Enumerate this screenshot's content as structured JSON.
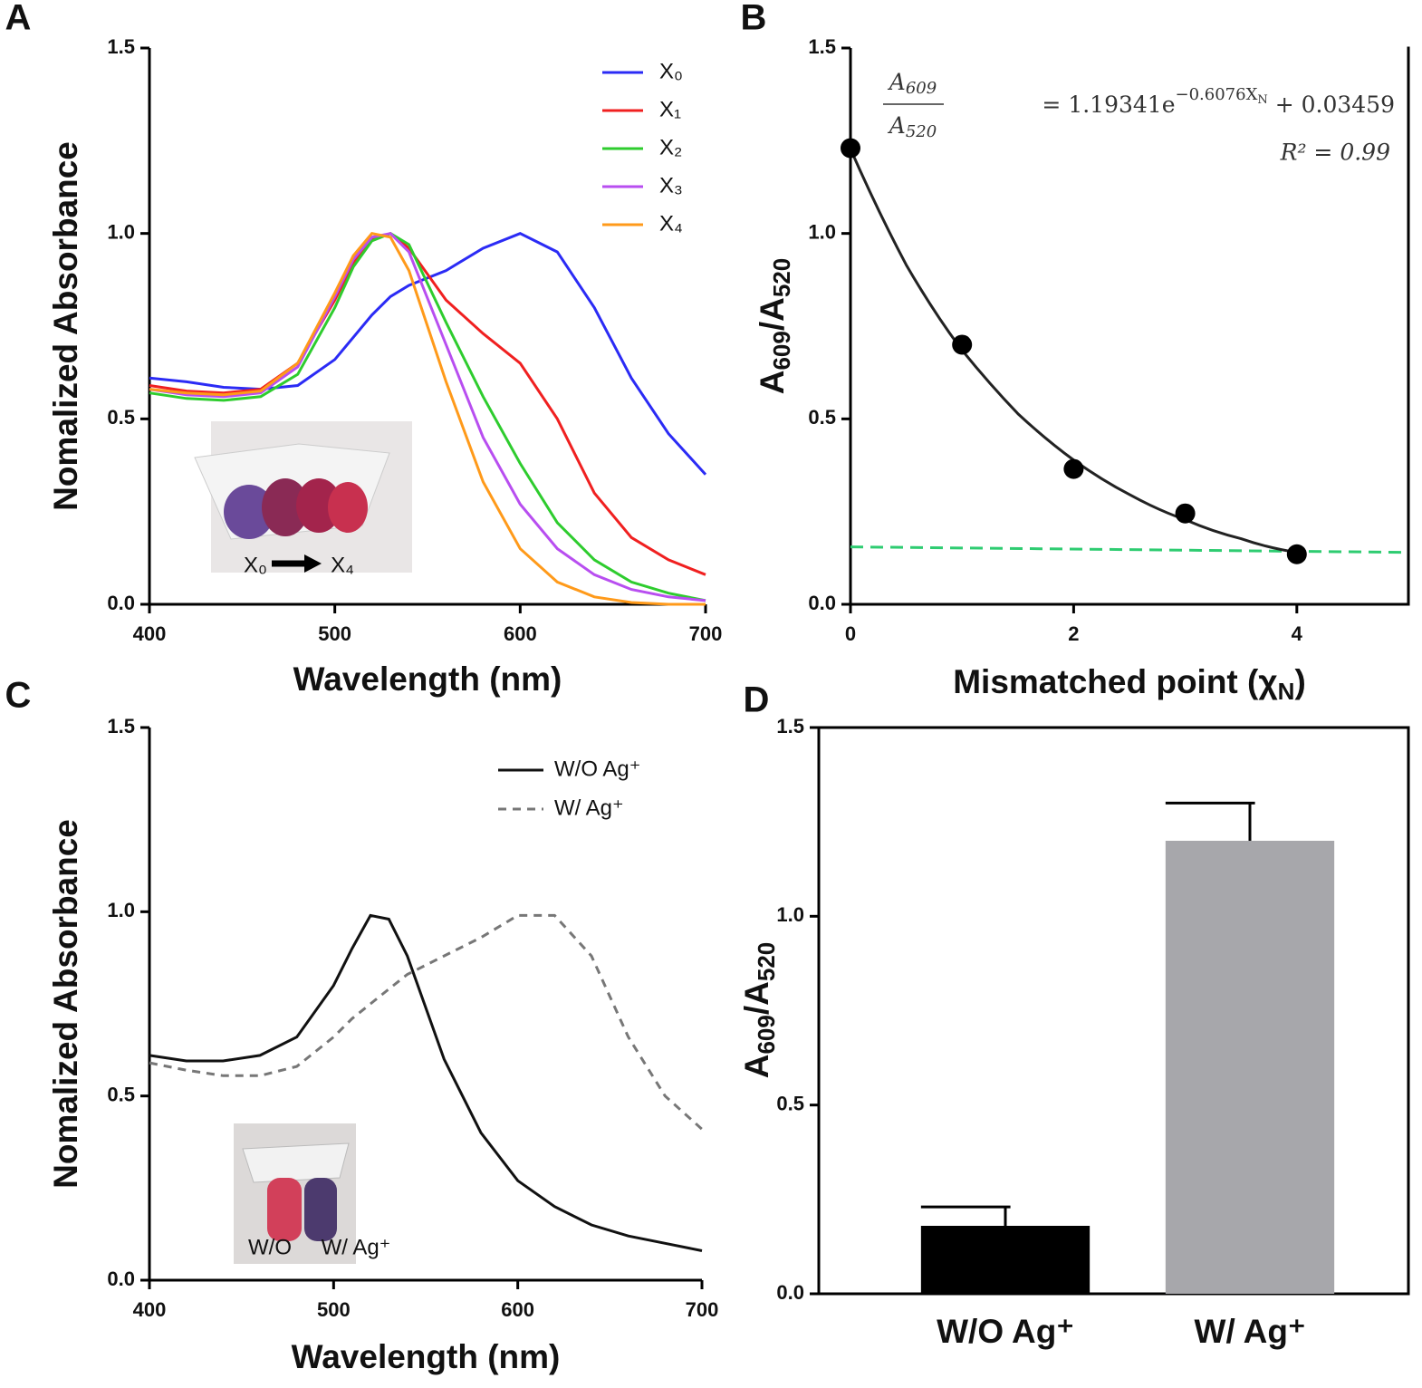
{
  "chart_data": [
    {
      "type": "line",
      "panel_label": "A",
      "xlabel": "Wavelength (nm)",
      "ylabel": "Nomalized Absorbance",
      "x": [
        400,
        420,
        440,
        460,
        480,
        500,
        510,
        520,
        530,
        540,
        560,
        580,
        600,
        620,
        640,
        660,
        680,
        700
      ],
      "series": [
        {
          "name": "X₀",
          "color": "#2b2bf5",
          "values": [
            0.61,
            0.6,
            0.585,
            0.58,
            0.59,
            0.66,
            0.72,
            0.78,
            0.83,
            0.86,
            0.9,
            0.96,
            1.0,
            0.95,
            0.8,
            0.61,
            0.46,
            0.35
          ]
        },
        {
          "name": "X₁",
          "color": "#f02020",
          "values": [
            0.59,
            0.575,
            0.57,
            0.58,
            0.65,
            0.82,
            0.92,
            0.985,
            1.0,
            0.96,
            0.82,
            0.73,
            0.65,
            0.5,
            0.3,
            0.18,
            0.12,
            0.08
          ]
        },
        {
          "name": "X₂",
          "color": "#2ecc2e",
          "values": [
            0.57,
            0.555,
            0.55,
            0.56,
            0.62,
            0.8,
            0.91,
            0.98,
            1.0,
            0.97,
            0.76,
            0.56,
            0.38,
            0.22,
            0.12,
            0.06,
            0.03,
            0.01
          ]
        },
        {
          "name": "X₃",
          "color": "#b84ef0",
          "values": [
            0.58,
            0.565,
            0.56,
            0.57,
            0.64,
            0.83,
            0.93,
            0.99,
            1.0,
            0.95,
            0.7,
            0.45,
            0.27,
            0.15,
            0.08,
            0.04,
            0.02,
            0.01
          ]
        },
        {
          "name": "X₄",
          "color": "#ff9a1a",
          "values": [
            0.58,
            0.57,
            0.565,
            0.575,
            0.65,
            0.84,
            0.94,
            1.0,
            0.99,
            0.9,
            0.6,
            0.33,
            0.15,
            0.06,
            0.02,
            0.005,
            0,
            0
          ]
        }
      ],
      "xlim": [
        400,
        700
      ],
      "xticks": [
        400,
        500,
        600,
        700
      ],
      "ylim": [
        0,
        1.5
      ],
      "yticks": [
        {
          "value": 0,
          "label": "0.0"
        },
        {
          "value": 0.5,
          "label": "0.5"
        },
        {
          "value": 1,
          "label": "1.0"
        },
        {
          "value": 1.5,
          "label": "1.5"
        }
      ],
      "legend": "upper right",
      "inset_labels": [
        "X₀",
        "X₄"
      ]
    },
    {
      "type": "scatter",
      "panel_label": "B",
      "xlabel": [
        "Mismatched point (χ",
        "N",
        ")"
      ],
      "ylabel": [
        "A",
        "609",
        "/A",
        "520"
      ],
      "x": [
        0,
        1,
        2,
        3,
        4
      ],
      "values": [
        1.23,
        0.7,
        0.365,
        0.245,
        0.135
      ],
      "color": "#000000",
      "fit": {
        "x": [
          0,
          0.5,
          1,
          1.5,
          2,
          2.5,
          3,
          3.5,
          4
        ],
        "values": [
          1.228,
          0.915,
          0.685,
          0.514,
          0.389,
          0.296,
          0.228,
          0.177,
          0.14
        ],
        "color": "#222222"
      },
      "threshold": {
        "x": [
          0,
          5
        ],
        "values": [
          0.155,
          0.14
        ],
        "color": "#2ecc71"
      },
      "equation": {
        "numerator": [
          "A",
          "609"
        ],
        "denominator": [
          "A",
          "520"
        ],
        "rhs": "=  1.19341e",
        "exponent": [
          "−0.6076X",
          "N"
        ],
        "tail": " + 0.03459"
      },
      "r_squared": "R² = 0.99",
      "xlim": [
        0,
        5
      ],
      "xticks": [
        0,
        2,
        4
      ],
      "ylim": [
        0,
        1.5
      ],
      "yticks": [
        {
          "value": 0,
          "label": "0.0"
        },
        {
          "value": 0.5,
          "label": "0.5"
        },
        {
          "value": 1,
          "label": "1.0"
        },
        {
          "value": 1.5,
          "label": "1.5"
        }
      ]
    },
    {
      "type": "line",
      "panel_label": "C",
      "xlabel": "Wavelength (nm)",
      "ylabel": "Nomalized Absorbance",
      "x": [
        400,
        420,
        440,
        460,
        480,
        500,
        510,
        520,
        530,
        540,
        560,
        580,
        600,
        620,
        640,
        660,
        680,
        700
      ],
      "series": [
        {
          "name": "W/O Ag⁺",
          "color": "#111111",
          "dash": false,
          "values": [
            0.61,
            0.595,
            0.595,
            0.61,
            0.66,
            0.8,
            0.9,
            0.99,
            0.98,
            0.88,
            0.6,
            0.4,
            0.27,
            0.2,
            0.15,
            0.12,
            0.1,
            0.08
          ]
        },
        {
          "name": "W/ Ag⁺",
          "color": "#777777",
          "dash": true,
          "values": [
            0.59,
            0.57,
            0.555,
            0.555,
            0.58,
            0.66,
            0.71,
            0.75,
            0.79,
            0.83,
            0.88,
            0.93,
            0.99,
            0.99,
            0.88,
            0.66,
            0.5,
            0.41
          ]
        }
      ],
      "xlim": [
        400,
        700
      ],
      "xticks": [
        400,
        500,
        600,
        700
      ],
      "ylim": [
        0,
        1.5
      ],
      "yticks": [
        {
          "value": 0,
          "label": "0.0"
        },
        {
          "value": 0.5,
          "label": "0.5"
        },
        {
          "value": 1,
          "label": "1.0"
        },
        {
          "value": 1.5,
          "label": "1.5"
        }
      ],
      "legend": "upper right",
      "inset_labels": [
        "W/O",
        "W/ Ag⁺"
      ]
    },
    {
      "type": "bar",
      "panel_label": "D",
      "ylabel": [
        "A",
        "609",
        "/A",
        "520"
      ],
      "categories": [
        "W/O Ag⁺",
        "W/ Ag⁺"
      ],
      "values": [
        0.18,
        1.2
      ],
      "errors": [
        0.05,
        0.1
      ],
      "colors": [
        "#000000",
        "#a7a7ab"
      ],
      "ylim": [
        0,
        1.5
      ],
      "yticks": [
        {
          "value": 0,
          "label": "0.0"
        },
        {
          "value": 0.5,
          "label": "0.5"
        },
        {
          "value": 1,
          "label": "1.0"
        },
        {
          "value": 1.5,
          "label": "1.5"
        }
      ]
    }
  ]
}
